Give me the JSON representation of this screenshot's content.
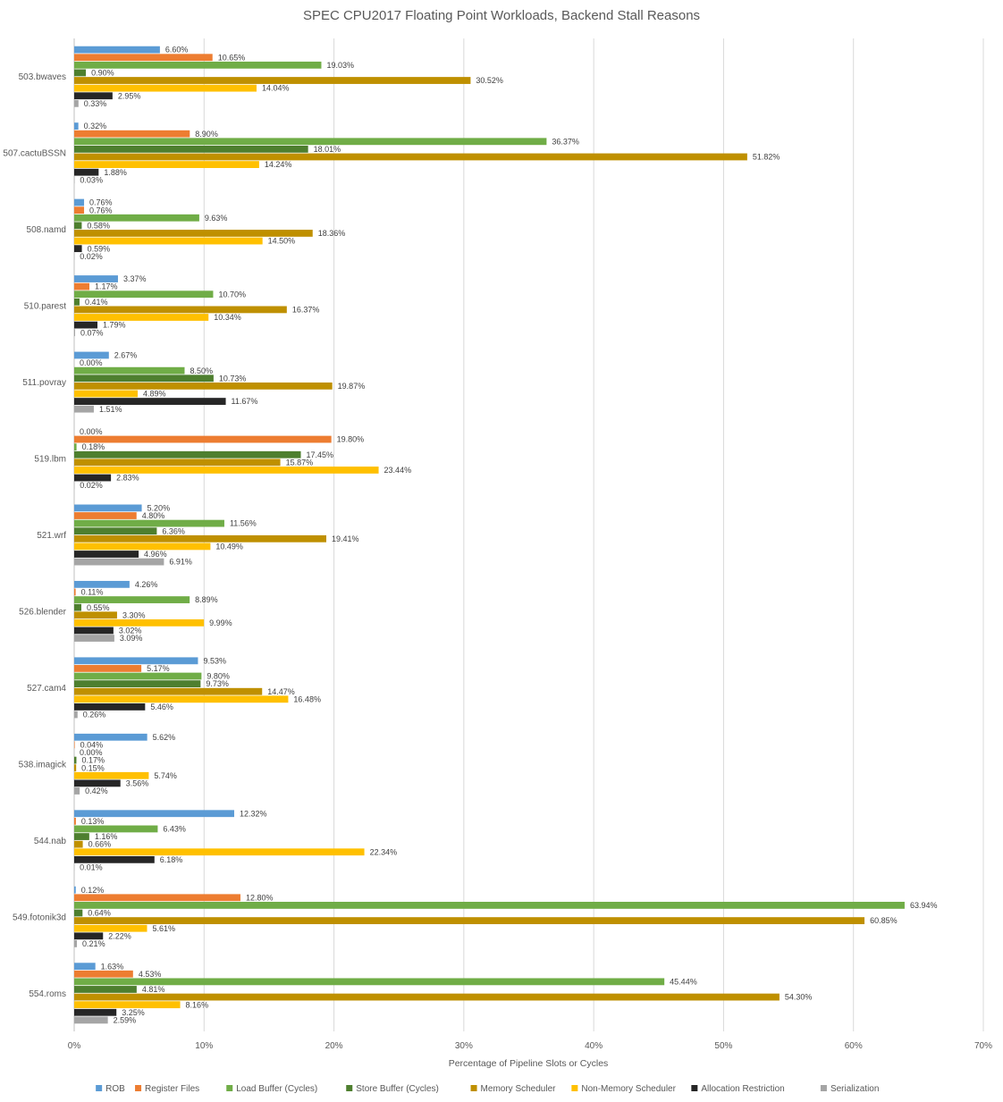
{
  "chart_data": {
    "type": "bar",
    "orientation": "horizontal",
    "title": "SPEC CPU2017 Floating Point Workloads, Backend Stall Reasons",
    "xlabel": "Percentage of Pipeline Slots or Cycles",
    "ylabel": "",
    "xlim": [
      0,
      70
    ],
    "xticks": [
      "0%",
      "10%",
      "20%",
      "30%",
      "40%",
      "50%",
      "60%",
      "70%"
    ],
    "grid": true,
    "legend_position": "bottom",
    "categories": [
      "503.bwaves",
      "507.cactuBSSN",
      "508.namd",
      "510.parest",
      "511.povray",
      "519.lbm",
      "521.wrf",
      "526.blender",
      "527.cam4",
      "538.imagick",
      "544.nab",
      "549.fotonik3d",
      "554.roms"
    ],
    "series": [
      {
        "name": "ROB",
        "color": "#5B9BD5",
        "values": [
          6.6,
          0.32,
          0.76,
          3.37,
          2.67,
          0.0,
          5.2,
          4.26,
          9.53,
          5.62,
          12.32,
          0.12,
          1.63
        ],
        "labels": [
          "6.60%",
          "0.32%",
          "0.76%",
          "3.37%",
          "2.67%",
          "0.00%",
          "5.20%",
          "4.26%",
          "9.53%",
          "5.62%",
          "12.32%",
          "0.12%",
          "1.63%"
        ]
      },
      {
        "name": "Register Files",
        "color": "#ED7D31",
        "values": [
          10.65,
          8.9,
          0.76,
          1.17,
          0.0,
          19.8,
          4.8,
          0.11,
          5.17,
          0.04,
          0.13,
          12.8,
          4.53
        ],
        "labels": [
          "10.65%",
          "8.90%",
          "0.76%",
          "1.17%",
          "0.00%",
          "19.80%",
          "4.80%",
          "0.11%",
          "5.17%",
          "0.04%",
          "0.13%",
          "12.80%",
          "4.53%"
        ]
      },
      {
        "name": "Load Buffer (Cycles)",
        "color": "#70AD47",
        "values": [
          19.03,
          36.37,
          9.63,
          10.7,
          8.5,
          0.18,
          11.56,
          8.89,
          9.8,
          0.0,
          6.43,
          63.94,
          45.44
        ],
        "labels": [
          "19.03%",
          "36.37%",
          "9.63%",
          "10.70%",
          "8.50%",
          "0.18%",
          "11.56%",
          "8.89%",
          "9.80%",
          "0.00%",
          "6.43%",
          "63.94%",
          "45.44%"
        ]
      },
      {
        "name": "Store Buffer (Cycles)",
        "color": "#4E7F2F",
        "values": [
          0.9,
          18.01,
          0.58,
          0.41,
          10.73,
          17.45,
          6.36,
          0.55,
          9.73,
          0.17,
          1.16,
          0.64,
          4.81
        ],
        "labels": [
          "0.90%",
          "18.01%",
          "0.58%",
          "0.41%",
          "10.73%",
          "17.45%",
          "6.36%",
          "0.55%",
          "9.73%",
          "0.17%",
          "1.16%",
          "0.64%",
          "4.81%"
        ]
      },
      {
        "name": "Memory Scheduler",
        "color": "#BF9000",
        "values": [
          30.52,
          51.82,
          18.36,
          16.37,
          19.87,
          15.87,
          19.41,
          3.3,
          14.47,
          0.15,
          0.66,
          60.85,
          54.3
        ],
        "labels": [
          "30.52%",
          "51.82%",
          "18.36%",
          "16.37%",
          "19.87%",
          "15.87%",
          "19.41%",
          "3.30%",
          "14.47%",
          "0.15%",
          "0.66%",
          "60.85%",
          "54.30%"
        ]
      },
      {
        "name": "Non-Memory Scheduler",
        "color": "#FFC000",
        "values": [
          14.04,
          14.24,
          14.5,
          10.34,
          4.89,
          23.44,
          10.49,
          9.99,
          16.48,
          5.74,
          22.34,
          5.61,
          8.16
        ],
        "labels": [
          "14.04%",
          "14.24%",
          "14.50%",
          "10.34%",
          "4.89%",
          "23.44%",
          "10.49%",
          "9.99%",
          "16.48%",
          "5.74%",
          "22.34%",
          "5.61%",
          "8.16%"
        ]
      },
      {
        "name": "Allocation Restriction",
        "color": "#262626",
        "values": [
          2.95,
          1.88,
          0.59,
          1.79,
          11.67,
          2.83,
          4.96,
          3.02,
          5.46,
          3.56,
          6.18,
          2.22,
          3.25
        ],
        "labels": [
          "2.95%",
          "1.88%",
          "0.59%",
          "1.79%",
          "11.67%",
          "2.83%",
          "4.96%",
          "3.02%",
          "5.46%",
          "3.56%",
          "6.18%",
          "2.22%",
          "3.25%"
        ]
      },
      {
        "name": "Serialization",
        "color": "#A5A5A5",
        "values": [
          0.33,
          0.03,
          0.02,
          0.07,
          1.51,
          0.02,
          6.91,
          3.09,
          0.26,
          0.42,
          0.01,
          0.21,
          2.59
        ],
        "labels": [
          "0.33%",
          "0.03%",
          "0.02%",
          "0.07%",
          "1.51%",
          "0.02%",
          "6.91%",
          "3.09%",
          "0.26%",
          "0.42%",
          "0.01%",
          "0.21%",
          "2.59%"
        ]
      }
    ]
  }
}
